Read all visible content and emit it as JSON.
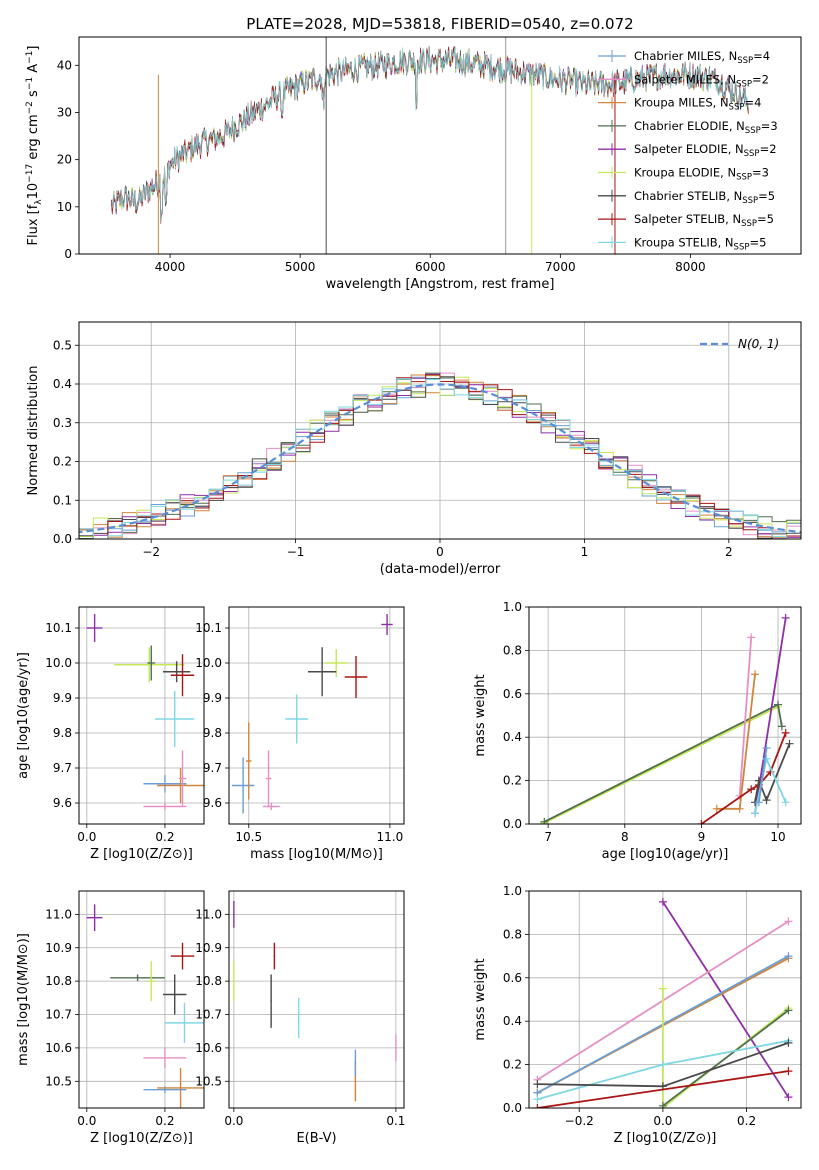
{
  "figure_title": "PLATE=2028, MJD=53818, FIBERID=0540, z=0.072",
  "colors": {
    "Chabrier MILES": "#6a9fd6",
    "Salpeter MILES": "#e58fc4",
    "Kroupa MILES": "#d1843b",
    "Chabrier ELODIE": "#4f6f4f",
    "Salpeter ELODIE": "#8e2fa6",
    "Kroupa ELODIE": "#c5e85a",
    "Chabrier STELIB": "#4a4a4a",
    "Salpeter STELIB": "#aa1414",
    "Kroupa STELIB": "#7fd7e3"
  },
  "chart_data": [
    {
      "id": "spectrum",
      "type": "line",
      "title": "",
      "xlabel": "wavelength [Angstrom, rest frame]",
      "ylabel": "Flux [f_λ 10^-17 erg cm^-2 s^-1 A^-1]",
      "xlim": [
        3300,
        8850
      ],
      "ylim": [
        0,
        46
      ],
      "xticks": [
        4000,
        5000,
        6000,
        7000,
        8000
      ],
      "yticks": [
        0,
        10,
        20,
        30,
        40
      ],
      "legend_position": "upper right",
      "series": [
        {
          "name": "Chabrier MILES, N_SSP=4"
        },
        {
          "name": "Salpeter MILES, N_SSP=2"
        },
        {
          "name": "Kroupa MILES, N_SSP=4"
        },
        {
          "name": "Chabrier ELODIE, N_SSP=3"
        },
        {
          "name": "Salpeter ELODIE, N_SSP=2"
        },
        {
          "name": "Kroupa ELODIE, N_SSP=3"
        },
        {
          "name": "Chabrier STELIB, N_SSP=5"
        },
        {
          "name": "Salpeter STELIB, N_SSP=5"
        },
        {
          "name": "Kroupa STELIB, N_SSP=5"
        }
      ],
      "continuum_points": [
        [
          3550,
          10
        ],
        [
          3650,
          12
        ],
        [
          3750,
          11
        ],
        [
          3850,
          14
        ],
        [
          3950,
          16
        ],
        [
          4000,
          19
        ],
        [
          4100,
          21
        ],
        [
          4200,
          23
        ],
        [
          4300,
          24
        ],
        [
          4400,
          25
        ],
        [
          4600,
          29
        ],
        [
          4800,
          33
        ],
        [
          5000,
          36
        ],
        [
          5200,
          38
        ],
        [
          5400,
          39
        ],
        [
          5600,
          40
        ],
        [
          5800,
          41
        ],
        [
          6000,
          41
        ],
        [
          6200,
          41
        ],
        [
          6400,
          40
        ],
        [
          6600,
          39
        ],
        [
          6800,
          38
        ],
        [
          7000,
          37
        ],
        [
          7200,
          36
        ],
        [
          7400,
          36
        ],
        [
          7600,
          37
        ],
        [
          7800,
          38
        ],
        [
          8000,
          38
        ],
        [
          8200,
          37
        ],
        [
          8400,
          33
        ],
        [
          8450,
          32
        ]
      ]
    },
    {
      "id": "residuals",
      "type": "line",
      "xlabel": "(data-model)/error",
      "ylabel": "Normed distribution",
      "xlim": [
        -2.5,
        2.5
      ],
      "ylim": [
        0,
        0.56
      ],
      "xticks": [
        -2,
        -1,
        0,
        1,
        2
      ],
      "yticks": [
        0.0,
        0.1,
        0.2,
        0.3,
        0.4,
        0.5
      ],
      "grid": true,
      "legend_position": "upper right",
      "reference_label": "N(0, 1)",
      "reference_color": "#5a8fd8"
    },
    {
      "id": "age_vs_Z",
      "type": "scatter",
      "xlabel": "Z [log10(Z/Z⊙)]",
      "ylabel": "age [log10(age/yr)]",
      "xlim": [
        -0.02,
        0.3
      ],
      "ylim": [
        9.54,
        10.16
      ],
      "xticks": [
        0.0,
        0.2
      ],
      "yticks": [
        9.6,
        9.7,
        9.8,
        9.9,
        10.0,
        10.1
      ],
      "grid": true,
      "points": [
        {
          "model": "Salpeter ELODIE",
          "x": 0.02,
          "y": 10.1,
          "xerr": 0.02,
          "yerr": 0.04
        },
        {
          "model": "Kroupa ELODIE",
          "x": 0.16,
          "y": 9.995,
          "xerr": 0.09,
          "yerr": 0.05
        },
        {
          "model": "Chabrier ELODIE",
          "x": 0.165,
          "y": 10.0,
          "xerr": 0.01,
          "yerr": 0.05
        },
        {
          "model": "Chabrier STELIB",
          "x": 0.23,
          "y": 9.975,
          "xerr": 0.035,
          "yerr": 0.03
        },
        {
          "model": "Salpeter STELIB",
          "x": 0.245,
          "y": 9.965,
          "xerr": 0.03,
          "yerr": 0.06
        },
        {
          "model": "Kroupa STELIB",
          "x": 0.225,
          "y": 9.84,
          "xerr": 0.05,
          "yerr": 0.08
        },
        {
          "model": "Chabrier MILES",
          "x": 0.2,
          "y": 9.655,
          "xerr": 0.055,
          "yerr": 0.025
        },
        {
          "model": "Kroupa MILES",
          "x": 0.24,
          "y": 9.65,
          "xerr": 0.06,
          "yerr": 0.05
        },
        {
          "model": "Salpeter MILES",
          "x": 0.245,
          "y": 9.67,
          "xerr": 0.01,
          "yerr": 0.08
        },
        {
          "model": "Salpeter MILES",
          "x": 0.2,
          "y": 9.59,
          "xerr": 0.055,
          "yerr": 0.01
        }
      ]
    },
    {
      "id": "age_vs_mass",
      "type": "scatter",
      "xlabel": "mass [log10(M/M⊙)]",
      "ylabel": "",
      "xlim": [
        10.43,
        11.05
      ],
      "ylim": [
        9.54,
        10.16
      ],
      "xticks": [
        10.5,
        11.0
      ],
      "yticks": [
        9.6,
        9.7,
        9.8,
        9.9,
        10.0,
        10.1
      ],
      "grid": true,
      "points": [
        {
          "model": "Salpeter ELODIE",
          "x": 10.99,
          "y": 10.11,
          "xerr": 0.02,
          "yerr": 0.03
        },
        {
          "model": "Kroupa ELODIE",
          "x": 10.81,
          "y": 10.0,
          "xerr": 0.04,
          "yerr": 0.04
        },
        {
          "model": "Chabrier STELIB",
          "x": 10.76,
          "y": 9.975,
          "xerr": 0.05,
          "yerr": 0.07
        },
        {
          "model": "Salpeter STELIB",
          "x": 10.88,
          "y": 9.96,
          "xerr": 0.04,
          "yerr": 0.06
        },
        {
          "model": "Kroupa STELIB",
          "x": 10.67,
          "y": 9.84,
          "xerr": 0.04,
          "yerr": 0.07
        },
        {
          "model": "Chabrier MILES",
          "x": 10.48,
          "y": 9.65,
          "xerr": 0.04,
          "yerr": 0.08
        },
        {
          "model": "Kroupa MILES",
          "x": 10.5,
          "y": 9.72,
          "xerr": 0.01,
          "yerr": 0.11
        },
        {
          "model": "Salpeter MILES",
          "x": 10.57,
          "y": 9.67,
          "xerr": 0.01,
          "yerr": 0.08
        },
        {
          "model": "Salpeter MILES",
          "x": 10.58,
          "y": 9.59,
          "xerr": 0.03,
          "yerr": 0.01
        }
      ]
    },
    {
      "id": "mass_weight_vs_age",
      "type": "line",
      "xlabel": "age [log10(age/yr)]",
      "ylabel": "mass weight",
      "xlim": [
        6.75,
        10.3
      ],
      "ylim": [
        0,
        1
      ],
      "xticks": [
        7,
        8,
        9,
        10
      ],
      "yticks": [
        0.0,
        0.2,
        0.4,
        0.6,
        0.8,
        1.0
      ],
      "grid": true,
      "series": [
        {
          "model": "Kroupa ELODIE",
          "x": [
            6.95,
            10.0
          ],
          "y": [
            0.005,
            0.54
          ]
        },
        {
          "model": "Chabrier ELODIE",
          "x": [
            6.95,
            10.0,
            10.05
          ],
          "y": [
            0.01,
            0.55,
            0.45
          ]
        },
        {
          "model": "Salpeter MILES",
          "x": [
            9.5,
            9.65
          ],
          "y": [
            0.13,
            0.86
          ]
        },
        {
          "model": "Kroupa MILES",
          "x": [
            9.2,
            9.5,
            9.7
          ],
          "y": [
            0.07,
            0.07,
            0.69
          ]
        },
        {
          "model": "Salpeter ELODIE",
          "x": [
            9.7,
            10.1
          ],
          "y": [
            0.05,
            0.95
          ]
        },
        {
          "model": "Salpeter STELIB",
          "x": [
            9.0,
            9.65,
            9.75,
            9.9,
            10.1
          ],
          "y": [
            0.0,
            0.16,
            0.18,
            0.24,
            0.42
          ]
        },
        {
          "model": "Chabrier STELIB",
          "x": [
            9.7,
            9.75,
            9.85,
            10.15
          ],
          "y": [
            0.1,
            0.2,
            0.11,
            0.37
          ]
        },
        {
          "model": "Kroupa STELIB",
          "x": [
            9.7,
            9.85,
            10.1
          ],
          "y": [
            0.05,
            0.3,
            0.1
          ]
        },
        {
          "model": "Chabrier MILES",
          "x": [
            9.75,
            9.85
          ],
          "y": [
            0.1,
            0.35
          ]
        }
      ]
    },
    {
      "id": "mass_vs_Z",
      "type": "scatter",
      "xlabel": "Z [log10(Z/Z⊙)]",
      "ylabel": "mass [log10(M/M⊙)]",
      "xlim": [
        -0.02,
        0.3
      ],
      "ylim": [
        10.42,
        11.07
      ],
      "xticks": [
        0.0,
        0.2
      ],
      "yticks": [
        10.5,
        10.6,
        10.7,
        10.8,
        10.9,
        11.0
      ],
      "grid": true,
      "points": [
        {
          "model": "Salpeter ELODIE",
          "x": 0.02,
          "y": 10.99,
          "xerr": 0.02,
          "yerr": 0.04
        },
        {
          "model": "Salpeter STELIB",
          "x": 0.245,
          "y": 10.875,
          "xerr": 0.03,
          "yerr": 0.04
        },
        {
          "model": "Chabrier ELODIE",
          "x": 0.13,
          "y": 10.81,
          "xerr": 0.07,
          "yerr": 0.01
        },
        {
          "model": "Kroupa ELODIE",
          "x": 0.165,
          "y": 10.8,
          "xerr": 0.01,
          "yerr": 0.06
        },
        {
          "model": "Chabrier STELIB",
          "x": 0.225,
          "y": 10.76,
          "xerr": 0.03,
          "yerr": 0.06
        },
        {
          "model": "Kroupa STELIB",
          "x": 0.25,
          "y": 10.675,
          "xerr": 0.05,
          "yerr": 0.06
        },
        {
          "model": "Salpeter MILES",
          "x": 0.2,
          "y": 10.57,
          "xerr": 0.055,
          "yerr": 0.03
        },
        {
          "model": "Kroupa MILES",
          "x": 0.24,
          "y": 10.48,
          "xerr": 0.06,
          "yerr": 0.06
        },
        {
          "model": "Chabrier MILES",
          "x": 0.2,
          "y": 10.475,
          "xerr": 0.055,
          "yerr": 0.01
        }
      ]
    },
    {
      "id": "mass_vs_ebv",
      "type": "scatter",
      "xlabel": "E(B-V)",
      "ylabel": "",
      "xlim": [
        -0.003,
        0.105
      ],
      "ylim": [
        10.42,
        11.07
      ],
      "xticks": [
        0.0,
        0.1
      ],
      "yticks": [
        10.5,
        10.6,
        10.7,
        10.8,
        10.9,
        11.0
      ],
      "grid": true,
      "points": [
        {
          "model": "Salpeter ELODIE",
          "x": 0.0,
          "y": 11.0,
          "xerr": 0.0,
          "yerr": 0.04
        },
        {
          "model": "Kroupa ELODIE",
          "x": 0.0,
          "y": 10.8,
          "xerr": 0.0,
          "yerr": 0.06
        },
        {
          "model": "Salpeter STELIB",
          "x": 0.025,
          "y": 10.875,
          "xerr": 0.0,
          "yerr": 0.04
        },
        {
          "model": "Chabrier STELIB",
          "x": 0.023,
          "y": 10.74,
          "xerr": 0.0,
          "yerr": 0.08
        },
        {
          "model": "Kroupa STELIB",
          "x": 0.04,
          "y": 10.69,
          "xerr": 0.0,
          "yerr": 0.06
        },
        {
          "model": "Kroupa MILES",
          "x": 0.075,
          "y": 10.5,
          "xerr": 0.0,
          "yerr": 0.06
        },
        {
          "model": "Chabrier MILES",
          "x": 0.075,
          "y": 10.555,
          "xerr": 0.0,
          "yerr": 0.04
        },
        {
          "model": "Salpeter MILES",
          "x": 0.1,
          "y": 10.6,
          "xerr": 0.0,
          "yerr": 0.04
        }
      ]
    },
    {
      "id": "mass_weight_vs_Z",
      "type": "line",
      "xlabel": "Z [log10(Z/Z⊙)]",
      "ylabel": "mass weight",
      "xlim": [
        -0.32,
        0.33
      ],
      "ylim": [
        0,
        1
      ],
      "xticks": [
        -0.2,
        0.0,
        0.2
      ],
      "yticks": [
        0.0,
        0.2,
        0.4,
        0.6,
        0.8,
        1.0
      ],
      "grid": true,
      "series": [
        {
          "model": "Salpeter ELODIE",
          "x": [
            0.0,
            0.3
          ],
          "y": [
            0.95,
            0.05
          ]
        },
        {
          "model": "Salpeter MILES",
          "x": [
            -0.3,
            0.3
          ],
          "y": [
            0.13,
            0.86
          ]
        },
        {
          "model": "Kroupa MILES",
          "x": [
            -0.3,
            0.3
          ],
          "y": [
            0.07,
            0.69
          ]
        },
        {
          "model": "Chabrier MILES",
          "x": [
            -0.3,
            0.3
          ],
          "y": [
            0.07,
            0.7
          ]
        },
        {
          "model": "Kroupa ELODIE",
          "x": [
            0.0,
            0.0,
            0.3
          ],
          "y": [
            0.55,
            0.0,
            0.46
          ]
        },
        {
          "model": "Chabrier ELODIE",
          "x": [
            0.0,
            0.3
          ],
          "y": [
            0.01,
            0.45
          ]
        },
        {
          "model": "Kroupa STELIB",
          "x": [
            -0.3,
            0.0,
            0.3
          ],
          "y": [
            0.04,
            0.2,
            0.31
          ]
        },
        {
          "model": "Chabrier STELIB",
          "x": [
            -0.3,
            0.0,
            0.3
          ],
          "y": [
            0.11,
            0.1,
            0.3
          ]
        },
        {
          "model": "Salpeter STELIB",
          "x": [
            -0.3,
            0.3
          ],
          "y": [
            0.0,
            0.17
          ]
        }
      ]
    }
  ]
}
